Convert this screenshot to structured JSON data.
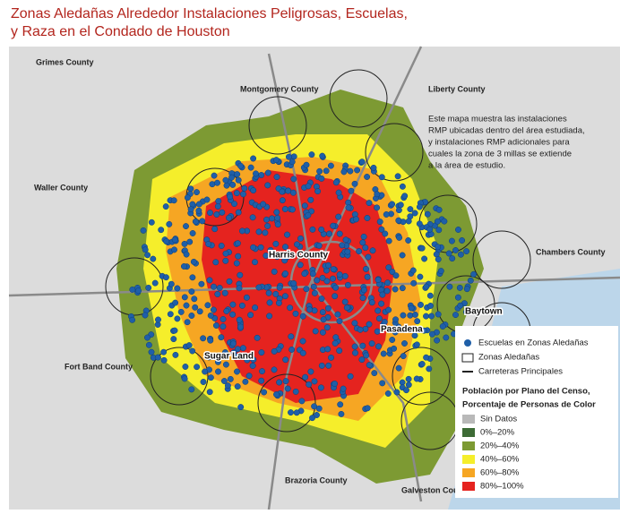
{
  "header": {
    "title": [
      "Zonas Aledañas Alrededor Instalaciones Peligrosas, Escuelas,",
      "y Raza en el Condado de Houston"
    ]
  },
  "counties": [
    "Grimes County",
    "Montgomery County",
    "Liberty County",
    "Waller County",
    "Chambers County",
    "Fort Band County",
    "Brazoria County",
    "Galveston County"
  ],
  "places": [
    "Harris County",
    "Baytown",
    "Pasadena",
    "Sugar Land"
  ],
  "note": [
    "Este mapa muestra las instalaciones",
    "RMP ubicadas dentro del área estudiada,",
    "y instalaciones RMP adicionales para",
    "cuales la zona de 3 millas se extiende",
    "a la área de estudio."
  ],
  "legend": {
    "symbols": [
      "Escuelas en Zonas Aledañas",
      "Zonas Aledañas",
      "Carreteras Principales"
    ],
    "heading": [
      "Población por Plano del Censo,",
      "Porcentaje de Personas de Color"
    ],
    "classes": [
      {
        "label": "Sin Datos",
        "color": "#b9b9b9"
      },
      {
        "label": "0%–20%",
        "color": "#3d6b35"
      },
      {
        "label": "20%–40%",
        "color": "#7d9a33"
      },
      {
        "label": "40%–60%",
        "color": "#f5ee2b"
      },
      {
        "label": "60%–80%",
        "color": "#f6a623"
      },
      {
        "label": "80%–100%",
        "color": "#e5231f"
      }
    ]
  }
}
